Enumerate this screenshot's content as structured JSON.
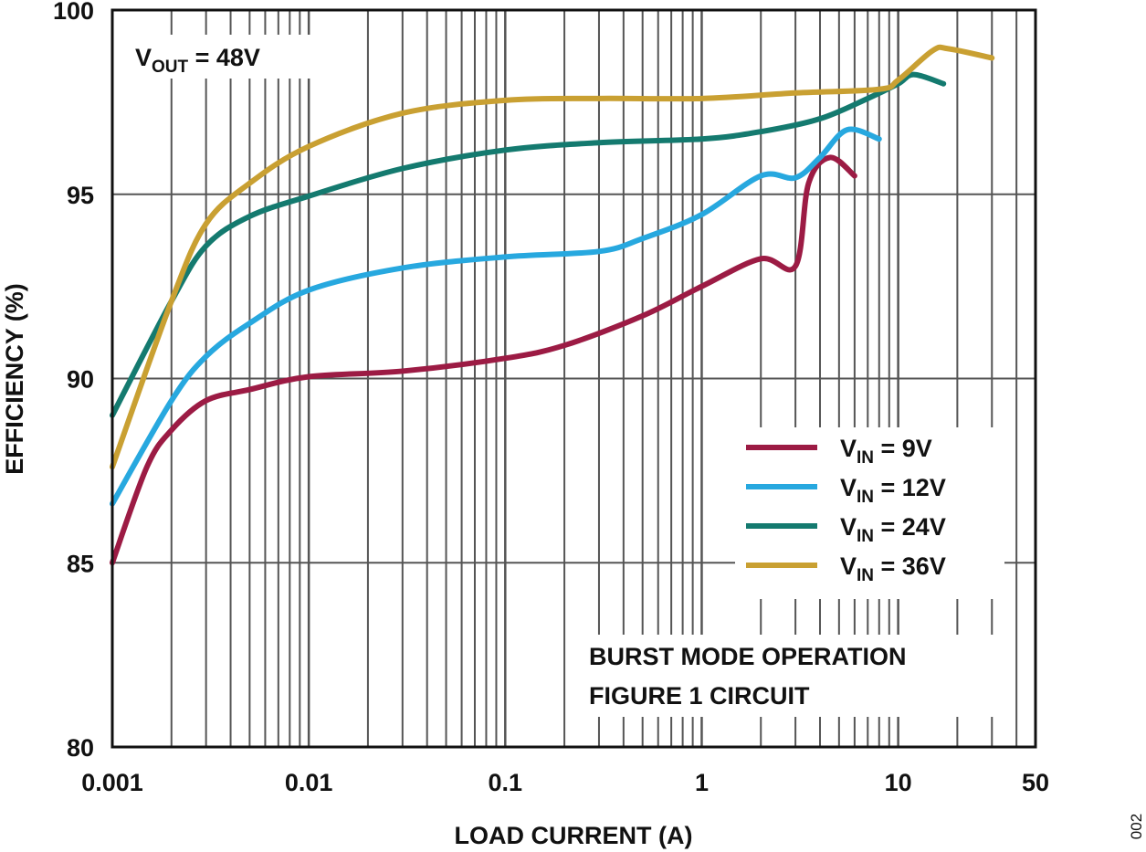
{
  "chart_data": {
    "type": "line",
    "title": "",
    "xlabel": "LOAD CURRENT (A)",
    "ylabel": "EFFICIENCY (%)",
    "x_scale": "log",
    "xlim": [
      0.001,
      50
    ],
    "ylim": [
      80,
      100
    ],
    "x_ticks": [
      "0.001",
      "0.01",
      "0.1",
      "1",
      "10",
      "50"
    ],
    "y_ticks": [
      "80",
      "85",
      "90",
      "95",
      "100"
    ],
    "grid": true,
    "legend_position": "right",
    "annotations": {
      "vout": {
        "main": "V",
        "sub": "OUT",
        "rest": " = 48V"
      },
      "mode_line1": "BURST MODE OPERATION",
      "mode_line2": "FIGURE 1 CIRCUIT",
      "figure_id": "002"
    },
    "series": [
      {
        "name": "VIN = 9V",
        "label_main": "V",
        "label_sub": "IN",
        "label_rest": " = 9V",
        "color": "#9c1b44",
        "x": [
          0.001,
          0.0015,
          0.002,
          0.003,
          0.005,
          0.01,
          0.03,
          0.1,
          0.2,
          0.5,
          1,
          2,
          3,
          3.5,
          4.5,
          6
        ],
        "y": [
          85.0,
          87.6,
          88.6,
          89.4,
          89.7,
          90.05,
          90.2,
          90.55,
          90.9,
          91.7,
          92.5,
          93.25,
          93.05,
          95.3,
          96.0,
          95.5
        ]
      },
      {
        "name": "VIN = 12V",
        "label_main": "V",
        "label_sub": "IN",
        "label_rest": " = 12V",
        "color": "#27a8df",
        "x": [
          0.001,
          0.002,
          0.003,
          0.005,
          0.01,
          0.03,
          0.1,
          0.3,
          0.5,
          1,
          2,
          3,
          4,
          5.5,
          8
        ],
        "y": [
          86.6,
          89.4,
          90.6,
          91.5,
          92.4,
          93.0,
          93.3,
          93.45,
          93.8,
          94.45,
          95.5,
          95.45,
          96.0,
          96.75,
          96.5
        ]
      },
      {
        "name": "VIN = 24V",
        "label_main": "V",
        "label_sub": "IN",
        "label_rest": " = 24V",
        "color": "#147a6f",
        "x": [
          0.001,
          0.002,
          0.003,
          0.005,
          0.01,
          0.03,
          0.1,
          0.3,
          1,
          2,
          4,
          7,
          10,
          12,
          17
        ],
        "y": [
          89.0,
          92.1,
          93.6,
          94.4,
          94.95,
          95.7,
          96.2,
          96.4,
          96.5,
          96.7,
          97.05,
          97.6,
          98.0,
          98.25,
          98.0
        ]
      },
      {
        "name": "VIN = 36V",
        "label_main": "V",
        "label_sub": "IN",
        "label_rest": " = 36V",
        "color": "#c9a032",
        "x": [
          0.001,
          0.002,
          0.003,
          0.005,
          0.01,
          0.03,
          0.1,
          0.3,
          1,
          3,
          8,
          10,
          15,
          18,
          30
        ],
        "y": [
          87.6,
          92.1,
          94.2,
          95.3,
          96.3,
          97.2,
          97.55,
          97.6,
          97.6,
          97.75,
          97.85,
          98.1,
          98.9,
          98.95,
          98.7
        ]
      }
    ]
  }
}
